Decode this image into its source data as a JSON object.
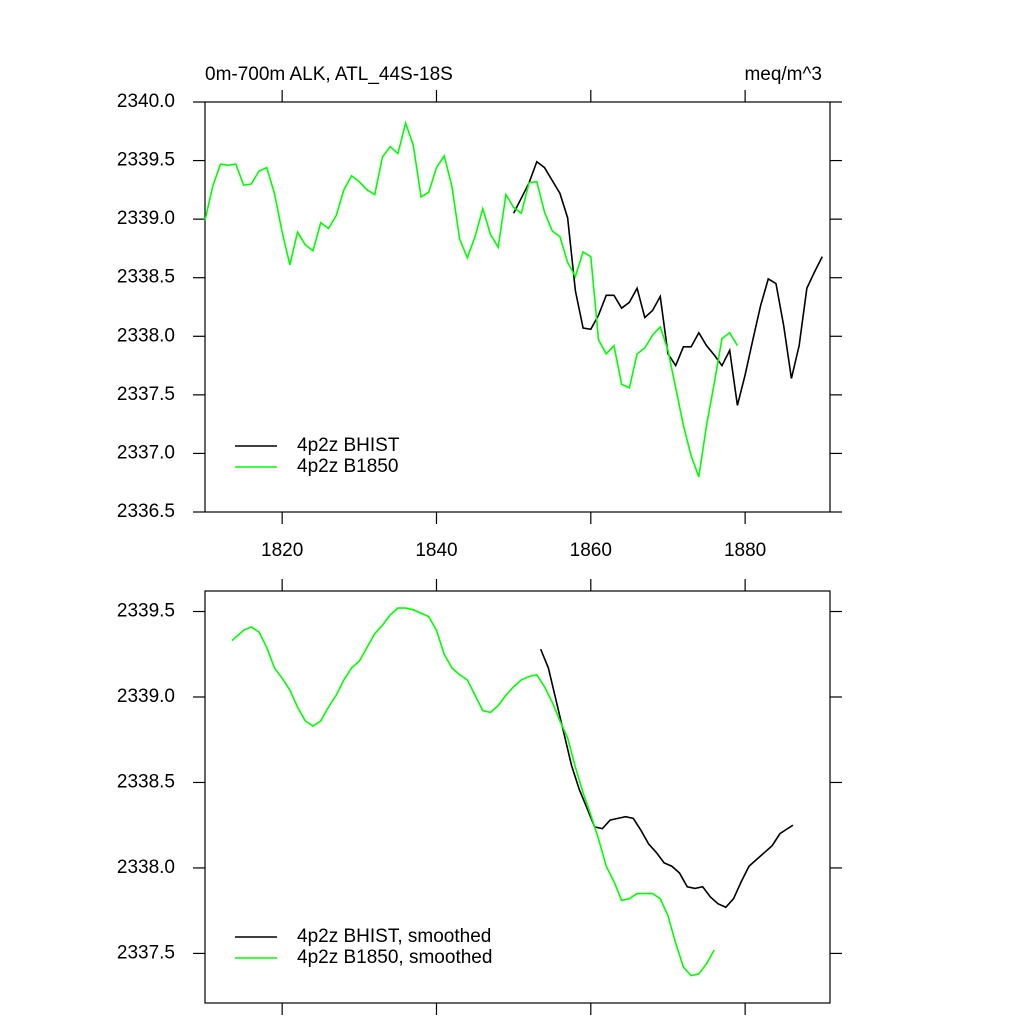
{
  "chart_data": [
    {
      "type": "line",
      "title": "0m-700m ALK, ATL_44S-18S",
      "units": "meq/m^3",
      "xlim": [
        1810,
        1891
      ],
      "xticks": [
        1820,
        1840,
        1860,
        1880
      ],
      "xticklabels": true,
      "ylim": [
        2336.5,
        2340.0
      ],
      "yticks": [
        {
          "value": 2340.0,
          "label": "2340.0"
        },
        2339.5,
        {
          "value": 2339.0,
          "label": "2339.0"
        },
        2338.5,
        {
          "value": 2338.0,
          "label": "2338.0"
        },
        2337.5,
        {
          "value": 2337.0,
          "label": "2337.0"
        },
        2336.5
      ],
      "legend": "lower left",
      "series": [
        {
          "name": "4p2z BHIST",
          "color": "#000000",
          "x": [
            1850,
            1851,
            1852,
            1853,
            1854,
            1855,
            1856,
            1857,
            1858,
            1859,
            1860,
            1861,
            1862,
            1863,
            1864,
            1865,
            1866,
            1867,
            1868,
            1869,
            1870,
            1871,
            1872,
            1873,
            1874,
            1875,
            1876,
            1877,
            1878,
            1879,
            1880,
            1881,
            1882,
            1883,
            1884,
            1885,
            1886,
            1887,
            1888,
            1889,
            1890
          ],
          "values": [
            2339.05,
            2339.18,
            2339.31,
            2339.49,
            2339.44,
            2339.33,
            2339.22,
            2339.01,
            2338.39,
            2338.07,
            2338.06,
            2338.18,
            2338.35,
            2338.35,
            2338.24,
            2338.29,
            2338.41,
            2338.16,
            2338.22,
            2338.34,
            2337.85,
            2337.75,
            2337.91,
            2337.91,
            2338.03,
            2337.92,
            2337.84,
            2337.75,
            2337.88,
            2337.41,
            2337.67,
            2337.97,
            2338.26,
            2338.49,
            2338.45,
            2338.09,
            2337.64,
            2337.92,
            2338.41,
            2338.55,
            2338.68
          ]
        },
        {
          "name": "4p2z B1850",
          "color": "#00ff00",
          "x": [
            1810,
            1811,
            1812,
            1813,
            1814,
            1815,
            1816,
            1817,
            1818,
            1819,
            1820,
            1821,
            1822,
            1823,
            1824,
            1825,
            1826,
            1827,
            1828,
            1829,
            1830,
            1831,
            1832,
            1833,
            1834,
            1835,
            1836,
            1837,
            1838,
            1839,
            1840,
            1841,
            1842,
            1843,
            1844,
            1845,
            1846,
            1847,
            1848,
            1849,
            1850,
            1851,
            1852,
            1853,
            1854,
            1855,
            1856,
            1857,
            1858,
            1859,
            1860,
            1861,
            1862,
            1863,
            1864,
            1865,
            1866,
            1867,
            1868,
            1869,
            1870,
            1871,
            1872,
            1873,
            1874,
            1875,
            1876,
            1877,
            1878,
            1879
          ],
          "values": [
            2338.99,
            2339.28,
            2339.47,
            2339.46,
            2339.47,
            2339.29,
            2339.3,
            2339.41,
            2339.44,
            2339.22,
            2338.89,
            2338.61,
            2338.89,
            2338.78,
            2338.73,
            2338.97,
            2338.92,
            2339.03,
            2339.25,
            2339.37,
            2339.32,
            2339.25,
            2339.21,
            2339.53,
            2339.62,
            2339.56,
            2339.82,
            2339.63,
            2339.19,
            2339.23,
            2339.44,
            2339.54,
            2339.28,
            2338.83,
            2338.67,
            2338.85,
            2339.09,
            2338.87,
            2338.76,
            2339.21,
            2339.1,
            2339.05,
            2339.31,
            2339.32,
            2339.06,
            2338.9,
            2338.85,
            2338.63,
            2338.51,
            2338.72,
            2338.68,
            2337.97,
            2337.85,
            2337.92,
            2337.59,
            2337.56,
            2337.85,
            2337.9,
            2338.01,
            2338.08,
            2337.88,
            2337.56,
            2337.24,
            2336.98,
            2336.8,
            2337.24,
            2337.6,
            2337.98,
            2338.03,
            2337.92
          ]
        }
      ]
    },
    {
      "type": "line",
      "xlim": [
        1810,
        1891
      ],
      "xticks": [
        1820,
        1840,
        1860,
        1880
      ],
      "xticklabels": false,
      "ylim": [
        2337.21,
        2339.62
      ],
      "yticks": [
        2339.5,
        {
          "value": 2339.0,
          "label": "2339.0"
        },
        2338.5,
        {
          "value": 2338.0,
          "label": "2338.0"
        },
        2337.5
      ],
      "legend": "lower left",
      "series": [
        {
          "name": "4p2z BHIST, smoothed",
          "color": "#000000",
          "x": [
            1853.5,
            1854.5,
            1855.5,
            1856.5,
            1857.5,
            1858.5,
            1859.5,
            1860.5,
            1861.5,
            1862.5,
            1863.5,
            1864.5,
            1865.5,
            1866.5,
            1867.5,
            1868.5,
            1869.5,
            1870.5,
            1871.5,
            1872.5,
            1873.5,
            1874.5,
            1875.5,
            1876.5,
            1877.5,
            1878.5,
            1879.5,
            1880.5,
            1881.5,
            1882.5,
            1883.5,
            1884.5,
            1885.5,
            1886.2
          ],
          "values": [
            2339.28,
            2339.17,
            2338.98,
            2338.79,
            2338.6,
            2338.46,
            2338.35,
            2338.24,
            2338.23,
            2338.28,
            2338.29,
            2338.3,
            2338.29,
            2338.22,
            2338.14,
            2338.09,
            2338.03,
            2338.01,
            2337.97,
            2337.89,
            2337.88,
            2337.89,
            2337.83,
            2337.79,
            2337.77,
            2337.82,
            2337.92,
            2338.01,
            2338.05,
            2338.09,
            2338.13,
            2338.2,
            2338.23,
            2338.25
          ]
        },
        {
          "name": "4p2z B1850, smoothed",
          "color": "#00ff00",
          "x": [
            1813.5,
            1815,
            1816,
            1817,
            1818,
            1819,
            1820,
            1821,
            1822,
            1823,
            1824,
            1825,
            1826,
            1827,
            1828,
            1829,
            1830,
            1831,
            1832,
            1833,
            1834,
            1835,
            1836,
            1837,
            1838,
            1839,
            1840,
            1841,
            1842,
            1843,
            1844,
            1845,
            1846,
            1847,
            1848,
            1849,
            1850,
            1851,
            1852,
            1853,
            1854,
            1855,
            1856,
            1857,
            1858,
            1859,
            1860,
            1861,
            1862,
            1863,
            1864,
            1865,
            1866,
            1867,
            1868,
            1869,
            1870,
            1871,
            1872,
            1873,
            1874,
            1875,
            1876
          ],
          "values": [
            2339.33,
            2339.39,
            2339.41,
            2339.38,
            2339.29,
            2339.17,
            2339.11,
            2339.04,
            2338.94,
            2338.86,
            2338.83,
            2338.86,
            2338.94,
            2339.01,
            2339.1,
            2339.17,
            2339.21,
            2339.29,
            2339.37,
            2339.42,
            2339.48,
            2339.52,
            2339.52,
            2339.51,
            2339.49,
            2339.47,
            2339.39,
            2339.25,
            2339.17,
            2339.13,
            2339.1,
            2339.01,
            2338.92,
            2338.91,
            2338.95,
            2339.01,
            2339.06,
            2339.1,
            2339.12,
            2339.13,
            2339.06,
            2338.97,
            2338.86,
            2338.76,
            2338.59,
            2338.44,
            2338.31,
            2338.17,
            2338.01,
            2337.92,
            2337.81,
            2337.82,
            2337.85,
            2337.85,
            2337.85,
            2337.82,
            2337.72,
            2337.56,
            2337.42,
            2337.37,
            2337.38,
            2337.44,
            2337.52
          ]
        }
      ]
    }
  ]
}
